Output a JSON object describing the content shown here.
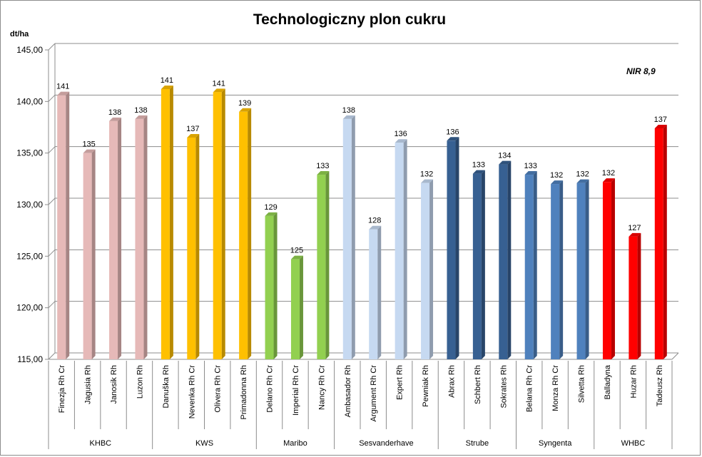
{
  "chart_data": {
    "type": "bar",
    "title": "Technologiczny plon cukru",
    "ylabel": "dt/ha",
    "ylim": [
      115,
      145
    ],
    "ytick_step": 5,
    "yticks": [
      "115,00",
      "120,00",
      "125,00",
      "130,00",
      "135,00",
      "140,00",
      "145,00"
    ],
    "grid": true,
    "annotation": "NIR 8,9",
    "categories": [
      "Finezja Rh Cr",
      "Jagusia Rh",
      "Janosik Rh",
      "Luzon Rh",
      "Danuška Rh",
      "Nevenka Rh Cr",
      "Olivera Rh Cr",
      "Primadonna Rh",
      "Delano Rh Cr",
      "Imperial Rh Cr",
      "Nancy Rh Cr",
      "Ambasador Rh",
      "Argument Rh Cr",
      "Expert Rh",
      "Pewniak Rh",
      "Abrax Rh",
      "Schbert Rh",
      "Sokrates Rh",
      "Belana Rh Cr",
      "Monza Rh Cr",
      "Silvetta Rh",
      "Balladyna",
      "Huzar Rh",
      "Tadeusz Rh"
    ],
    "values": [
      140.6,
      135.0,
      138.1,
      138.3,
      141.2,
      136.5,
      140.9,
      139.0,
      128.9,
      124.7,
      132.9,
      138.3,
      127.6,
      136.0,
      132.1,
      136.2,
      133.0,
      133.9,
      132.9,
      132.0,
      132.1,
      132.2,
      126.9,
      137.4
    ],
    "data_labels": [
      "141",
      "135",
      "138",
      "138",
      "141",
      "137",
      "141",
      "139",
      "129",
      "125",
      "133",
      "138",
      "128",
      "136",
      "132",
      "136",
      "133",
      "134",
      "133",
      "132",
      "132",
      "132",
      "127",
      "137"
    ],
    "groups": [
      {
        "name": "KHBC",
        "count": 4,
        "color": "#e6b9b8"
      },
      {
        "name": "KWS",
        "count": 4,
        "color": "#ffc000"
      },
      {
        "name": "Maribo",
        "count": 3,
        "color": "#92d050"
      },
      {
        "name": "Sesvanderhave",
        "count": 4,
        "color": "#c6d9f1"
      },
      {
        "name": "Strube",
        "count": 3,
        "color": "#376092"
      },
      {
        "name": "Syngenta",
        "count": 3,
        "color": "#4f81bd"
      },
      {
        "name": "WHBC",
        "count": 3,
        "color": "#ff0000"
      }
    ]
  }
}
